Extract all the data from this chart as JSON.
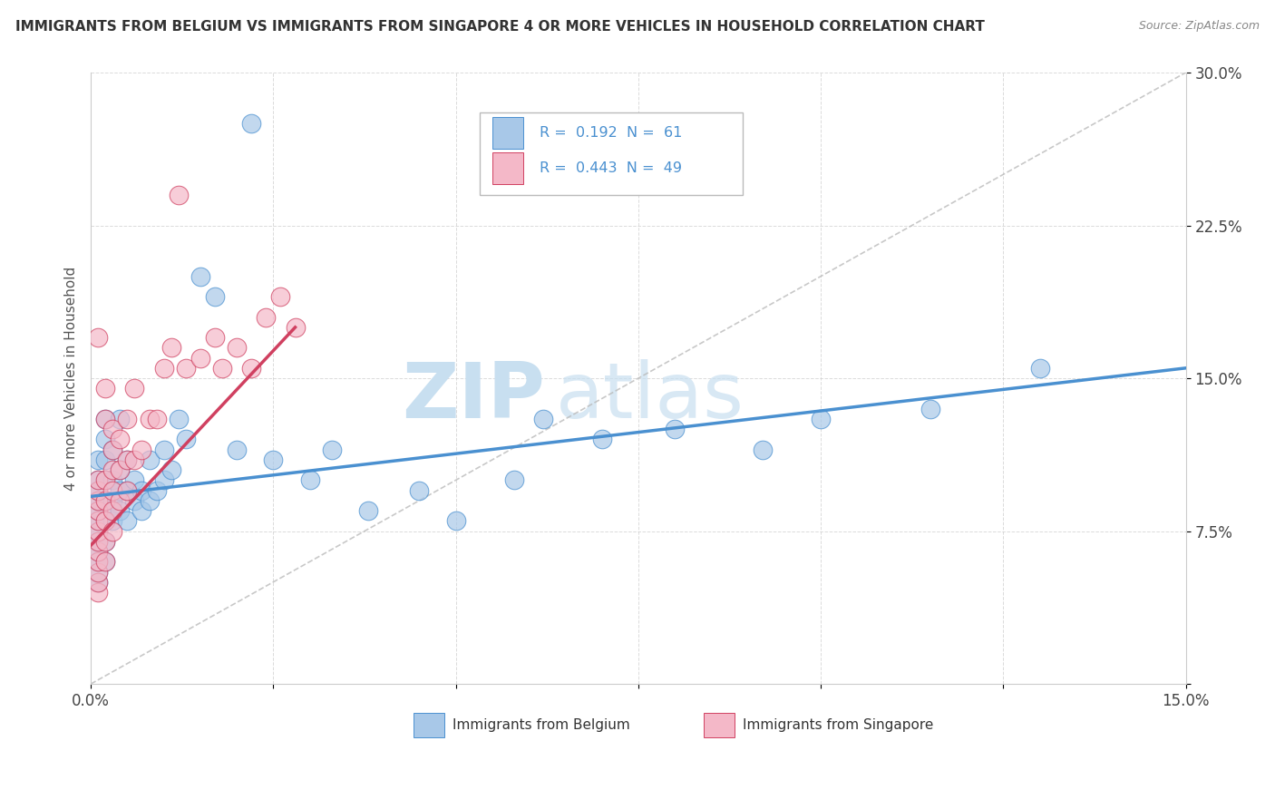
{
  "title": "IMMIGRANTS FROM BELGIUM VS IMMIGRANTS FROM SINGAPORE 4 OR MORE VEHICLES IN HOUSEHOLD CORRELATION CHART",
  "source": "Source: ZipAtlas.com",
  "ylabel": "4 or more Vehicles in Household",
  "xlim": [
    0.0,
    0.15
  ],
  "ylim": [
    0.0,
    0.3
  ],
  "xticks": [
    0.0,
    0.025,
    0.05,
    0.075,
    0.1,
    0.125,
    0.15
  ],
  "xtick_labels": [
    "0.0%",
    "",
    "",
    "",
    "",
    "",
    "15.0%"
  ],
  "yticks": [
    0.0,
    0.075,
    0.15,
    0.225,
    0.3
  ],
  "ytick_labels": [
    "",
    "7.5%",
    "15.0%",
    "22.5%",
    "30.0%"
  ],
  "legend_belgium": "Immigrants from Belgium",
  "legend_singapore": "Immigrants from Singapore",
  "R_belgium": 0.192,
  "N_belgium": 61,
  "R_singapore": 0.443,
  "N_singapore": 49,
  "color_belgium": "#a8c8e8",
  "color_singapore": "#f4b8c8",
  "line_color_belgium": "#4a90d0",
  "line_color_singapore": "#d04060",
  "watermark_zip": "ZIP",
  "watermark_atlas": "atlas",
  "background_color": "#ffffff",
  "grid_color": "#cccccc",
  "belgium_x": [
    0.001,
    0.001,
    0.001,
    0.001,
    0.001,
    0.001,
    0.001,
    0.001,
    0.001,
    0.001,
    0.001,
    0.001,
    0.002,
    0.002,
    0.002,
    0.002,
    0.002,
    0.002,
    0.002,
    0.002,
    0.003,
    0.003,
    0.003,
    0.003,
    0.004,
    0.004,
    0.004,
    0.004,
    0.005,
    0.005,
    0.005,
    0.006,
    0.006,
    0.007,
    0.007,
    0.008,
    0.008,
    0.009,
    0.01,
    0.01,
    0.011,
    0.012,
    0.013,
    0.015,
    0.017,
    0.02,
    0.022,
    0.025,
    0.03,
    0.033,
    0.038,
    0.045,
    0.05,
    0.058,
    0.062,
    0.07,
    0.08,
    0.092,
    0.1,
    0.115,
    0.13
  ],
  "belgium_y": [
    0.05,
    0.055,
    0.06,
    0.065,
    0.07,
    0.075,
    0.08,
    0.085,
    0.09,
    0.095,
    0.1,
    0.11,
    0.06,
    0.07,
    0.08,
    0.09,
    0.1,
    0.11,
    0.12,
    0.13,
    0.08,
    0.09,
    0.1,
    0.115,
    0.085,
    0.095,
    0.105,
    0.13,
    0.08,
    0.095,
    0.11,
    0.09,
    0.1,
    0.085,
    0.095,
    0.09,
    0.11,
    0.095,
    0.1,
    0.115,
    0.105,
    0.13,
    0.12,
    0.2,
    0.19,
    0.115,
    0.275,
    0.11,
    0.1,
    0.115,
    0.085,
    0.095,
    0.08,
    0.1,
    0.13,
    0.12,
    0.125,
    0.115,
    0.13,
    0.135,
    0.155
  ],
  "singapore_x": [
    0.001,
    0.001,
    0.001,
    0.001,
    0.001,
    0.001,
    0.001,
    0.001,
    0.001,
    0.001,
    0.001,
    0.001,
    0.001,
    0.002,
    0.002,
    0.002,
    0.002,
    0.002,
    0.002,
    0.002,
    0.003,
    0.003,
    0.003,
    0.003,
    0.003,
    0.003,
    0.004,
    0.004,
    0.004,
    0.005,
    0.005,
    0.005,
    0.006,
    0.006,
    0.007,
    0.008,
    0.009,
    0.01,
    0.011,
    0.012,
    0.013,
    0.015,
    0.017,
    0.018,
    0.02,
    0.022,
    0.024,
    0.026,
    0.028
  ],
  "singapore_y": [
    0.045,
    0.05,
    0.055,
    0.06,
    0.065,
    0.07,
    0.075,
    0.08,
    0.085,
    0.09,
    0.095,
    0.1,
    0.17,
    0.06,
    0.07,
    0.08,
    0.09,
    0.1,
    0.13,
    0.145,
    0.075,
    0.085,
    0.095,
    0.105,
    0.115,
    0.125,
    0.09,
    0.105,
    0.12,
    0.095,
    0.11,
    0.13,
    0.11,
    0.145,
    0.115,
    0.13,
    0.13,
    0.155,
    0.165,
    0.24,
    0.155,
    0.16,
    0.17,
    0.155,
    0.165,
    0.155,
    0.18,
    0.19,
    0.175
  ],
  "blue_line_x0": 0.0,
  "blue_line_y0": 0.092,
  "blue_line_x1": 0.15,
  "blue_line_y1": 0.155,
  "pink_line_x0": 0.0,
  "pink_line_y0": 0.068,
  "pink_line_x1": 0.028,
  "pink_line_y1": 0.175
}
